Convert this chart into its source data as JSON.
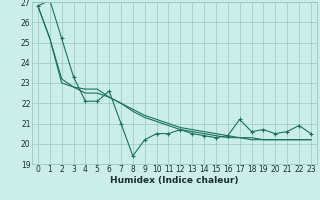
{
  "xlabel": "Humidex (Indice chaleur)",
  "x": [
    0,
    1,
    2,
    3,
    4,
    5,
    6,
    7,
    8,
    9,
    10,
    11,
    12,
    13,
    14,
    15,
    16,
    17,
    18,
    19,
    20,
    21,
    22,
    23
  ],
  "line1": [
    26.8,
    27.1,
    25.2,
    23.3,
    22.1,
    22.1,
    22.6,
    21.0,
    19.4,
    20.2,
    20.5,
    20.5,
    20.7,
    20.5,
    20.4,
    20.3,
    20.4,
    21.2,
    20.6,
    20.7,
    20.5,
    20.6,
    20.9,
    20.5
  ],
  "line2": [
    26.8,
    25.2,
    23.0,
    22.8,
    22.7,
    22.7,
    22.3,
    22.0,
    21.6,
    21.3,
    21.1,
    20.9,
    20.7,
    20.6,
    20.5,
    20.4,
    20.3,
    20.3,
    20.2,
    20.2,
    20.2,
    20.2,
    20.2,
    20.2
  ],
  "line3": [
    26.8,
    25.2,
    23.2,
    22.8,
    22.5,
    22.5,
    22.3,
    22.0,
    21.7,
    21.4,
    21.2,
    21.0,
    20.8,
    20.7,
    20.6,
    20.5,
    20.4,
    20.3,
    20.3,
    20.2,
    20.2,
    20.2,
    20.2,
    20.2
  ],
  "background_color": "#cceee8",
  "grid_color": "#96c8c0",
  "line_color": "#1a7060",
  "ylim": [
    19,
    27
  ],
  "yticks": [
    19,
    20,
    21,
    22,
    23,
    24,
    25,
    26,
    27
  ],
  "xticks": [
    0,
    1,
    2,
    3,
    4,
    5,
    6,
    7,
    8,
    9,
    10,
    11,
    12,
    13,
    14,
    15,
    16,
    17,
    18,
    19,
    20,
    21,
    22,
    23
  ],
  "tick_fontsize": 5.5,
  "xlabel_fontsize": 6.5
}
